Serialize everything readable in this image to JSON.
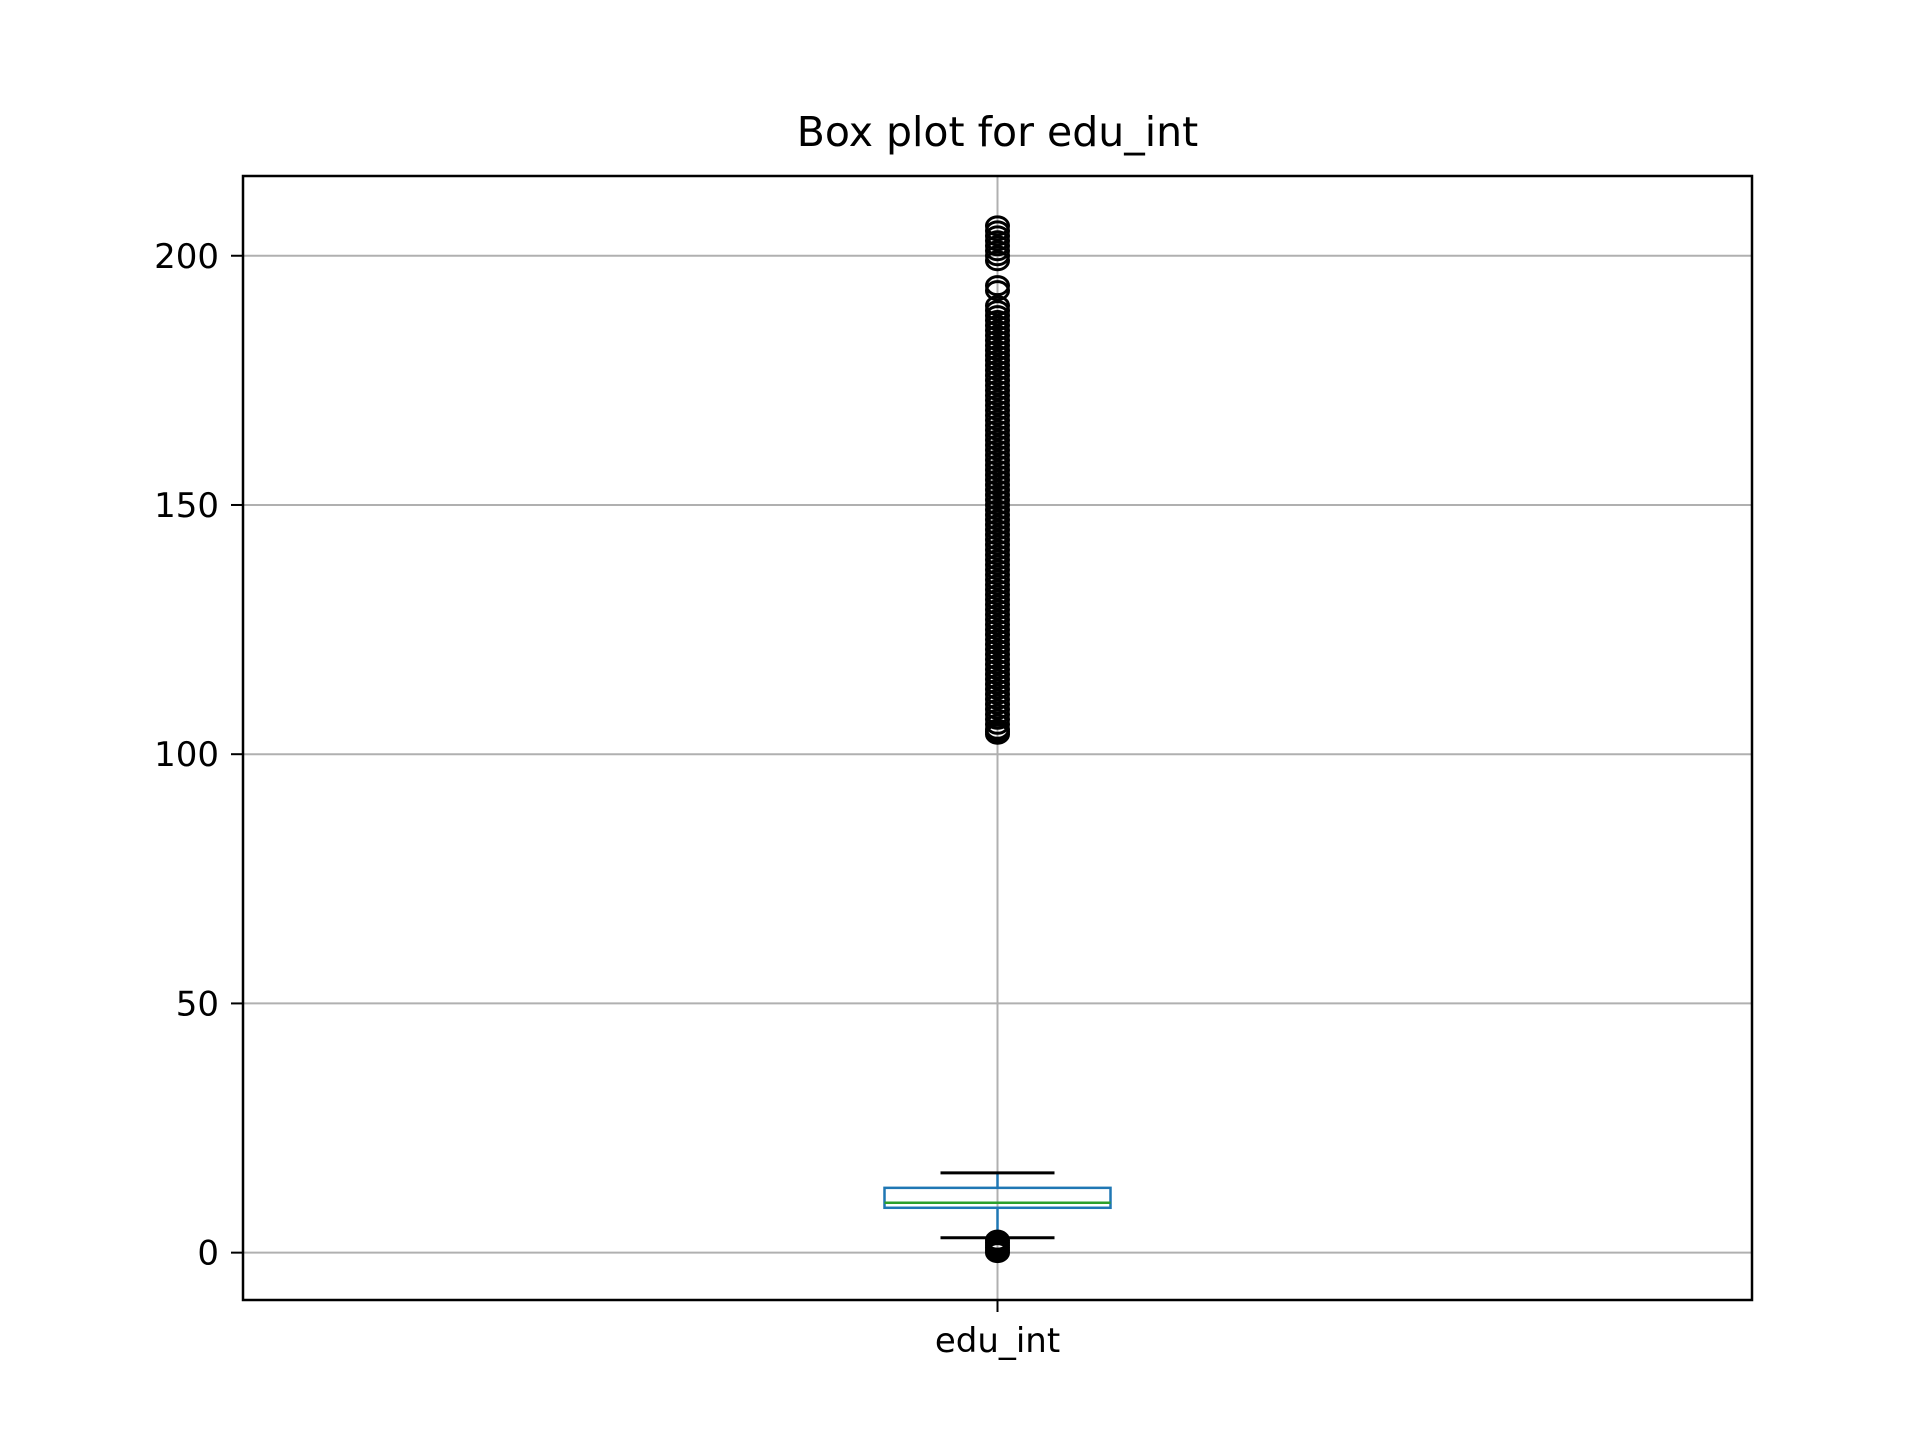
{
  "chart_data": {
    "type": "box",
    "title": "Box plot for edu_int",
    "xlabel": "",
    "ylabel": "",
    "categories": [
      "edu_int"
    ],
    "ylim": [
      -9.5,
      216
    ],
    "yticks": [
      0,
      50,
      100,
      150,
      200
    ],
    "grid": true,
    "boxes": [
      {
        "category": "edu_int",
        "whisker_low": 3,
        "q1": 9,
        "median": 10,
        "q3": 13,
        "whisker_high": 16,
        "outliers": [
          0,
          0.5,
          1,
          1.5,
          2,
          2.5,
          104,
          104.5,
          105,
          106,
          107,
          108,
          109,
          110,
          111,
          112,
          113,
          114,
          115,
          116,
          117,
          118,
          119,
          120,
          121,
          122,
          123,
          124,
          125,
          126,
          127,
          128,
          129,
          130,
          131,
          132,
          133,
          134,
          135,
          136,
          137,
          138,
          139,
          140,
          141,
          142,
          143,
          144,
          145,
          146,
          147,
          148,
          149,
          150,
          151,
          152,
          153,
          154,
          155,
          156,
          157,
          158,
          159,
          160,
          161,
          162,
          163,
          164,
          165,
          166,
          167,
          168,
          169,
          170,
          171,
          172,
          173,
          174,
          175,
          176,
          177,
          178,
          179,
          180,
          181,
          182,
          183,
          184,
          185,
          186,
          187,
          188,
          189,
          190,
          193,
          194,
          199,
          200,
          201,
          202,
          203,
          204,
          205,
          206
        ]
      }
    ],
    "colors": {
      "box": "#1f77b4",
      "median": "#2ca02c",
      "whisker": "#000000",
      "grid": "#b0b0b0",
      "axes": "#000000",
      "outlier": "#000000"
    }
  }
}
